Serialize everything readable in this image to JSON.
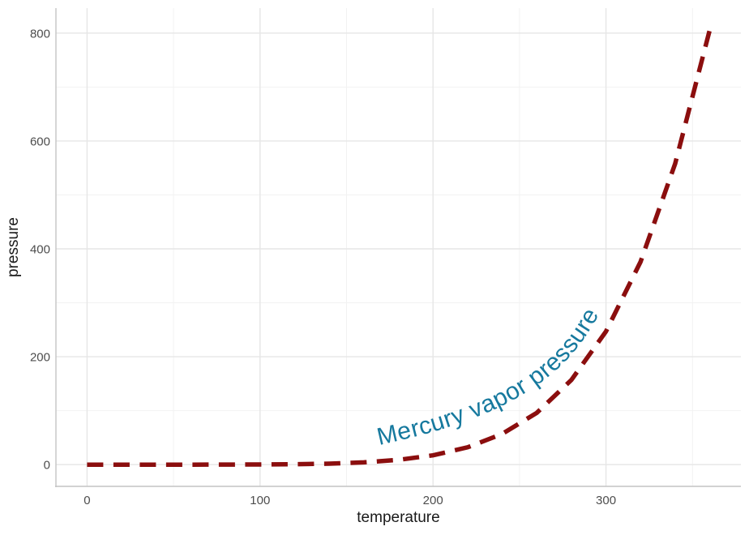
{
  "chart_data": {
    "type": "line",
    "title": "",
    "xlabel": "temperature",
    "ylabel": "pressure",
    "series_label": "Mercury vapor pressure",
    "x": [
      0,
      20,
      40,
      60,
      80,
      100,
      120,
      140,
      160,
      180,
      200,
      220,
      240,
      260,
      280,
      300,
      320,
      340,
      360
    ],
    "y": [
      0.0002,
      0.0012,
      0.006,
      0.03,
      0.09,
      0.27,
      0.75,
      1.85,
      4.2,
      8.8,
      17.3,
      32.1,
      57.0,
      96.0,
      157.0,
      247.0,
      376.0,
      558.0,
      806.0
    ],
    "x_ticks": [
      0,
      100,
      200,
      300
    ],
    "y_ticks": [
      0,
      200,
      400,
      600,
      800
    ],
    "x_minor_ticks": [
      50,
      150,
      250,
      350
    ],
    "y_minor_ticks": [
      100,
      300,
      500,
      700
    ],
    "xlim": [
      -18,
      378
    ],
    "ylim": [
      -40.3,
      846.3
    ],
    "grid": true,
    "legend": "none",
    "line_style": "dashed",
    "colors": {
      "line": "#8B0E0E",
      "label": "#16799E",
      "grid_major": "#e6e6e6",
      "grid_minor": "#f2f2f2",
      "axis_line": "#c4c4c4",
      "tick_text": "#4d4d4d",
      "title_text": "#1a1a1a",
      "background": "#ffffff"
    }
  }
}
